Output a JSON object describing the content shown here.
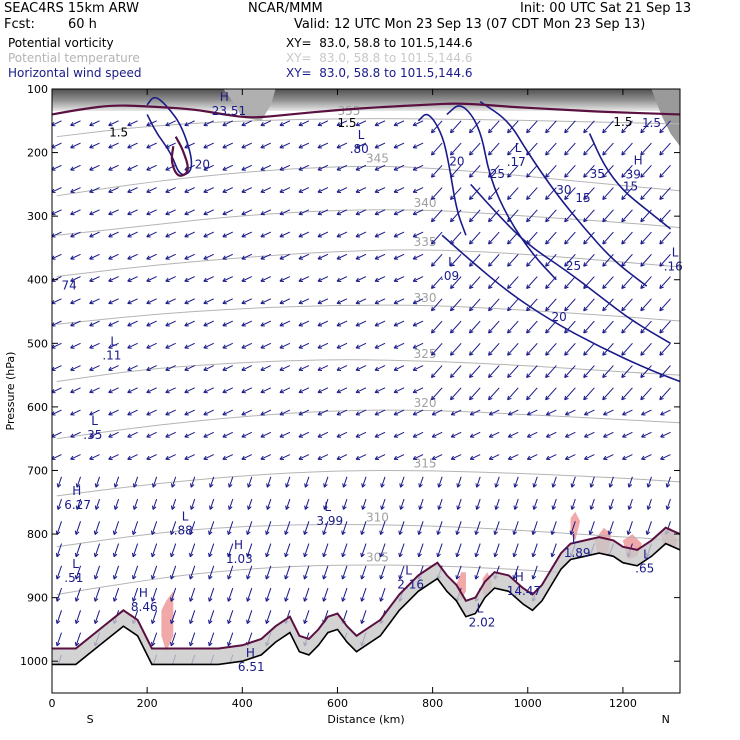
{
  "header": {
    "model": "SEAC4RS 15km ARW",
    "forecast_label": "Fcst:",
    "forecast_value": "60 h",
    "center": "NCAR/MMM",
    "init": "Init: 00 UTC Sat 21 Sep 13",
    "valid": "Valid: 12 UTC Mon 23 Sep 13 (07 CDT Mon 23 Sep 13)"
  },
  "legend": [
    {
      "name": "Potential vorticity",
      "color": "#000000",
      "xy": "XY=  83.0, 58.8 to 101.5,144.6"
    },
    {
      "name": "Potential temperature",
      "color": "#b4b4b4",
      "xy": "XY=  83.0, 58.8 to 101.5,144.6"
    },
    {
      "name": "Horizontal wind speed",
      "color": "#1a1a8a",
      "xy": "XY=  83.0, 58.8 to 101.5,144.6"
    }
  ],
  "chart_data": {
    "type": "cross-section",
    "xlabel": "Distance (km)",
    "ylabel": "Pressure (hPa)",
    "xlim": [
      0,
      1320
    ],
    "ylim": [
      1050,
      100
    ],
    "x_ticks": [
      0,
      200,
      400,
      600,
      800,
      1000,
      1200
    ],
    "y_ticks": [
      100,
      200,
      300,
      400,
      500,
      600,
      700,
      800,
      900,
      1000
    ],
    "end_labels": {
      "left": "S",
      "right": "N"
    },
    "colors": {
      "pv_1_5": "#5a1040",
      "theta": "#b4b4b4",
      "wind": "#1a1a8a",
      "pv_fill_high": "#f0a8a8",
      "terrain": "#000000"
    },
    "theta_contours": [
      {
        "label": "355",
        "pts": [
          [
            10,
            175
          ],
          [
            200,
            158
          ],
          [
            400,
            150
          ],
          [
            640,
            146
          ],
          [
            900,
            148
          ],
          [
            1150,
            152
          ],
          [
            1320,
            155
          ]
        ]
      },
      {
        "label": "345",
        "pts": [
          [
            10,
            268
          ],
          [
            150,
            252
          ],
          [
            300,
            238
          ],
          [
            500,
            225
          ],
          [
            700,
            220
          ],
          [
            900,
            230
          ],
          [
            1100,
            245
          ],
          [
            1320,
            260
          ]
        ]
      },
      {
        "label": "340",
        "pts": [
          [
            10,
            330
          ],
          [
            200,
            315
          ],
          [
            380,
            300
          ],
          [
            600,
            290
          ],
          [
            800,
            290
          ],
          [
            1000,
            300
          ],
          [
            1200,
            310
          ],
          [
            1320,
            318
          ]
        ]
      },
      {
        "label": "335",
        "pts": [
          [
            10,
            395
          ],
          [
            200,
            378
          ],
          [
            400,
            365
          ],
          [
            600,
            355
          ],
          [
            800,
            352
          ],
          [
            1000,
            360
          ],
          [
            1200,
            372
          ],
          [
            1320,
            380
          ]
        ]
      },
      {
        "label": "330",
        "pts": [
          [
            10,
            470
          ],
          [
            200,
            455
          ],
          [
            400,
            445
          ],
          [
            600,
            440
          ],
          [
            800,
            440
          ],
          [
            1000,
            448
          ],
          [
            1200,
            458
          ],
          [
            1320,
            465
          ]
        ]
      },
      {
        "label": "325",
        "pts": [
          [
            10,
            560
          ],
          [
            200,
            540
          ],
          [
            400,
            530
          ],
          [
            600,
            525
          ],
          [
            800,
            528
          ],
          [
            1000,
            535
          ],
          [
            1200,
            545
          ],
          [
            1320,
            550
          ]
        ]
      },
      {
        "label": "320",
        "pts": [
          [
            10,
            650
          ],
          [
            200,
            630
          ],
          [
            400,
            615
          ],
          [
            600,
            605
          ],
          [
            800,
            605
          ],
          [
            1000,
            612
          ],
          [
            1200,
            620
          ],
          [
            1320,
            625
          ]
        ]
      },
      {
        "label": "315",
        "pts": [
          [
            10,
            740
          ],
          [
            200,
            722
          ],
          [
            400,
            708
          ],
          [
            600,
            700
          ],
          [
            800,
            700
          ],
          [
            1000,
            705
          ],
          [
            1200,
            712
          ],
          [
            1320,
            718
          ]
        ]
      },
      {
        "label": "310",
        "pts": [
          [
            10,
            820
          ],
          [
            150,
            805
          ],
          [
            300,
            792
          ],
          [
            500,
            785
          ],
          [
            700,
            785
          ],
          [
            900,
            790
          ],
          [
            1100,
            800
          ],
          [
            1320,
            810
          ]
        ]
      },
      {
        "label": "305",
        "pts": [
          [
            10,
            895
          ],
          [
            150,
            878
          ],
          [
            300,
            862
          ],
          [
            500,
            850
          ],
          [
            700,
            848
          ],
          [
            900,
            852
          ],
          [
            1100,
            862
          ],
          [
            1320,
            870
          ]
        ]
      }
    ],
    "wind_contours": [
      {
        "label": "20",
        "pts": [
          [
            200,
            125
          ],
          [
            215,
            110
          ],
          [
            240,
            125
          ],
          [
            275,
            160
          ],
          [
            300,
            225
          ],
          [
            270,
            240
          ],
          [
            250,
            200
          ],
          [
            220,
            170
          ],
          [
            200,
            140
          ]
        ]
      },
      {
        "label": "20",
        "pts": [
          [
            770,
            150
          ],
          [
            790,
            135
          ],
          [
            820,
            170
          ],
          [
            835,
            220
          ],
          [
            850,
            290
          ],
          [
            870,
            330
          ]
        ]
      },
      {
        "label": "25",
        "pts": [
          [
            830,
            140
          ],
          [
            860,
            120
          ],
          [
            900,
            160
          ],
          [
            920,
            240
          ],
          [
            960,
            305
          ],
          [
            1010,
            360
          ],
          [
            1060,
            400
          ]
        ]
      },
      {
        "label": "30",
        "pts": [
          [
            900,
            120
          ],
          [
            960,
            150
          ],
          [
            1000,
            200
          ],
          [
            1060,
            265
          ],
          [
            1120,
            320
          ],
          [
            1180,
            370
          ],
          [
            1250,
            410
          ]
        ]
      },
      {
        "label": "25",
        "pts": [
          [
            880,
            250
          ],
          [
            940,
            300
          ],
          [
            1000,
            345
          ],
          [
            1080,
            385
          ],
          [
            1150,
            425
          ],
          [
            1220,
            465
          ],
          [
            1300,
            500
          ]
        ]
      },
      {
        "label": "20",
        "pts": [
          [
            820,
            330
          ],
          [
            880,
            370
          ],
          [
            960,
            420
          ],
          [
            1050,
            465
          ],
          [
            1150,
            505
          ],
          [
            1250,
            540
          ],
          [
            1320,
            560
          ]
        ]
      },
      {
        "label": "15",
        "pts": [
          [
            1130,
            170
          ],
          [
            1160,
            220
          ],
          [
            1200,
            260
          ],
          [
            1250,
            290
          ],
          [
            1300,
            320
          ]
        ]
      }
    ],
    "pv_1_5_contour": [
      {
        "pts": [
          [
            0,
            140
          ],
          [
            60,
            132
          ],
          [
            130,
            125
          ],
          [
            220,
            128
          ],
          [
            300,
            132
          ],
          [
            360,
            140
          ],
          [
            420,
            146
          ],
          [
            500,
            140
          ],
          [
            600,
            133
          ],
          [
            700,
            128
          ],
          [
            780,
            125
          ],
          [
            860,
            122
          ],
          [
            960,
            128
          ],
          [
            1060,
            132
          ],
          [
            1160,
            136
          ],
          [
            1240,
            138
          ],
          [
            1320,
            140
          ]
        ]
      },
      {
        "pts": [
          [
            260,
            175
          ],
          [
            275,
            195
          ],
          [
            290,
            230
          ],
          [
            265,
            240
          ],
          [
            250,
            215
          ],
          [
            255,
            190
          ]
        ]
      }
    ],
    "wind_speed_labels": [
      "20",
      "20",
      "25",
      "30",
      "25",
      "20",
      "15",
      "30",
      "35"
    ],
    "pv_extrema": [
      {
        "type": "H",
        "value": "23.51",
        "x": 340,
        "p": 125
      },
      {
        "type": "L",
        "value": ".80",
        "x": 630,
        "p": 185
      },
      {
        "type": "L",
        "value": ".17",
        "x": 960,
        "p": 205
      },
      {
        "type": "H",
        "value": "39",
        "x": 1210,
        "p": 225
      },
      {
        "type": "L",
        "value": ".09",
        "x": 820,
        "p": 385
      },
      {
        "type": "L",
        "value": ".16",
        "x": 1290,
        "p": 370
      },
      {
        "type": "L",
        "value": ".11",
        "x": 110,
        "p": 510
      },
      {
        "type": "L",
        "value": ".35",
        "x": 70,
        "p": 635
      },
      {
        "type": "H",
        "value": "6.27",
        "x": 30,
        "p": 745
      },
      {
        "type": "L",
        "value": ".88",
        "x": 260,
        "p": 785
      },
      {
        "type": "L",
        "value": "3.99",
        "x": 560,
        "p": 770
      },
      {
        "type": "H",
        "value": "1.03",
        "x": 370,
        "p": 830
      },
      {
        "type": "L",
        "value": ".51",
        "x": 30,
        "p": 860
      },
      {
        "type": "L",
        "value": "2.16",
        "x": 730,
        "p": 870
      },
      {
        "type": "H",
        "value": "8.46",
        "x": 170,
        "p": 905
      },
      {
        "type": "H",
        "value": "14.47",
        "x": 960,
        "p": 880
      },
      {
        "type": "L",
        "value": "1.89",
        "x": 1080,
        "p": 820
      },
      {
        "type": "L",
        "value": ".65",
        "x": 1230,
        "p": 845
      },
      {
        "type": "L",
        "value": "2.02",
        "x": 880,
        "p": 930
      },
      {
        "type": "H",
        "value": "6.51",
        "x": 395,
        "p": 1000
      }
    ],
    "top_right_labels": [
      {
        "text": "1.5",
        "x": 1240,
        "p": 160
      },
      {
        "text": "74",
        "x": 20,
        "p": 415
      },
      {
        "text": "35",
        "x": 1130,
        "p": 240
      },
      {
        "text": "15",
        "x": 1100,
        "p": 278
      }
    ],
    "terrain": [
      [
        0,
        1005
      ],
      [
        50,
        1005
      ],
      [
        100,
        975
      ],
      [
        150,
        945
      ],
      [
        180,
        960
      ],
      [
        210,
        1005
      ],
      [
        250,
        1005
      ],
      [
        300,
        1005
      ],
      [
        350,
        1005
      ],
      [
        400,
        1000
      ],
      [
        440,
        990
      ],
      [
        470,
        970
      ],
      [
        500,
        955
      ],
      [
        520,
        985
      ],
      [
        540,
        990
      ],
      [
        560,
        975
      ],
      [
        580,
        955
      ],
      [
        600,
        950
      ],
      [
        620,
        970
      ],
      [
        640,
        985
      ],
      [
        660,
        975
      ],
      [
        690,
        960
      ],
      [
        710,
        940
      ],
      [
        730,
        920
      ],
      [
        750,
        905
      ],
      [
        770,
        890
      ],
      [
        790,
        880
      ],
      [
        810,
        870
      ],
      [
        830,
        890
      ],
      [
        850,
        905
      ],
      [
        870,
        930
      ],
      [
        890,
        925
      ],
      [
        910,
        900
      ],
      [
        930,
        885
      ],
      [
        960,
        890
      ],
      [
        990,
        910
      ],
      [
        1010,
        920
      ],
      [
        1030,
        905
      ],
      [
        1050,
        880
      ],
      [
        1070,
        855
      ],
      [
        1090,
        840
      ],
      [
        1120,
        835
      ],
      [
        1150,
        830
      ],
      [
        1180,
        835
      ],
      [
        1200,
        845
      ],
      [
        1230,
        850
      ],
      [
        1260,
        835
      ],
      [
        1290,
        815
      ],
      [
        1320,
        825
      ]
    ],
    "pv_high_patches": [
      [
        [
          230,
          920
        ],
        [
          240,
          905
        ],
        [
          255,
          890
        ],
        [
          255,
          960
        ],
        [
          240,
          985
        ],
        [
          230,
          960
        ]
      ],
      [
        [
          850,
          880
        ],
        [
          860,
          860
        ],
        [
          870,
          860
        ],
        [
          870,
          890
        ],
        [
          860,
          905
        ]
      ],
      [
        [
          905,
          870
        ],
        [
          915,
          860
        ],
        [
          925,
          875
        ],
        [
          920,
          900
        ],
        [
          905,
          895
        ]
      ],
      [
        [
          1090,
          775
        ],
        [
          1100,
          765
        ],
        [
          1110,
          780
        ],
        [
          1100,
          810
        ],
        [
          1090,
          800
        ]
      ],
      [
        [
          1140,
          810
        ],
        [
          1160,
          790
        ],
        [
          1175,
          800
        ],
        [
          1170,
          830
        ],
        [
          1150,
          840
        ]
      ],
      [
        [
          1200,
          810
        ],
        [
          1220,
          800
        ],
        [
          1240,
          815
        ],
        [
          1230,
          835
        ],
        [
          1210,
          840
        ]
      ],
      [
        [
          1280,
          800
        ],
        [
          1300,
          790
        ],
        [
          1315,
          810
        ],
        [
          1310,
          830
        ],
        [
          1290,
          835
        ]
      ]
    ]
  },
  "right_lables_unused": ""
}
